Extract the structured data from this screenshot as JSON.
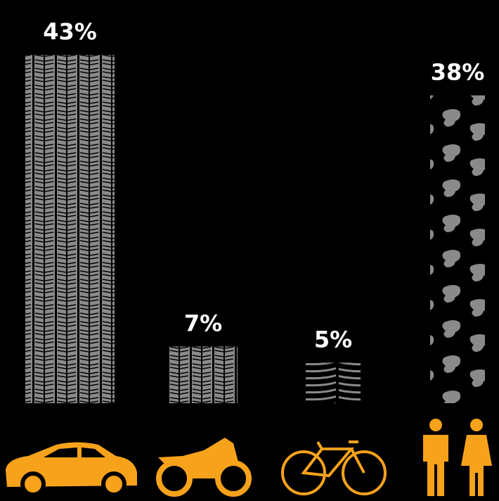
{
  "chart_data": {
    "type": "bar",
    "categories": [
      null,
      null,
      null,
      null
    ],
    "values": [
      43,
      7,
      5,
      38
    ],
    "value_labels": [
      "43%",
      "7%",
      "5%",
      "38%"
    ],
    "color": "#8a8a8a"
  }
}
